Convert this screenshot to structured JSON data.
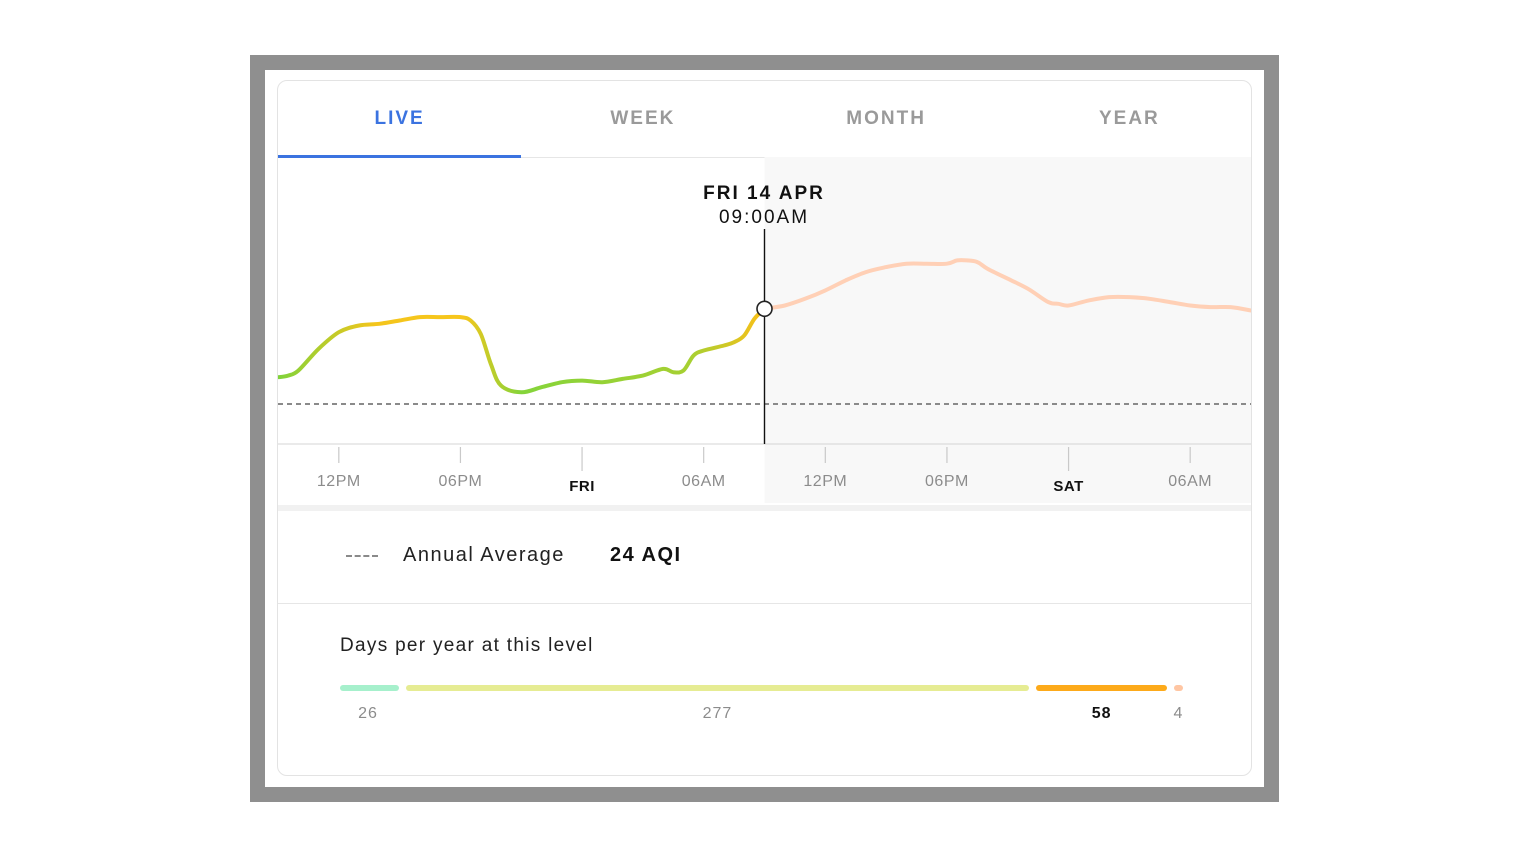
{
  "tabs": [
    {
      "label": "LIVE",
      "active": true
    },
    {
      "label": "WEEK",
      "active": false
    },
    {
      "label": "MONTH",
      "active": false
    },
    {
      "label": "YEAR",
      "active": false
    }
  ],
  "cursor": {
    "date": "FRI 14 APR",
    "time": "09:00AM"
  },
  "chart_data": {
    "type": "line",
    "x_tick_labels": [
      "12PM",
      "06PM",
      "FRI",
      "06AM",
      "12PM",
      "06PM",
      "SAT",
      "06AM"
    ],
    "x_tick_hours": [
      12,
      18,
      24,
      30,
      36,
      42,
      48,
      54
    ],
    "x_range_hours": [
      9,
      57
    ],
    "y_range": [
      0,
      130
    ],
    "past": {
      "x_hours": [
        9,
        9.5,
        10,
        11,
        12,
        13,
        14,
        15,
        16,
        17,
        18,
        18.5,
        19,
        19.5,
        20,
        21,
        22,
        23,
        24,
        25,
        26,
        27,
        28,
        28.5,
        29,
        29.5,
        30,
        31,
        31.5,
        32,
        32.5,
        33
      ],
      "values": [
        40,
        41,
        44,
        57,
        67,
        71,
        72,
        74,
        76,
        76,
        76,
        74,
        66,
        48,
        35,
        31,
        34,
        37,
        38,
        37,
        39,
        41,
        45,
        43,
        44,
        53,
        56,
        59,
        61,
        65,
        75,
        81
      ]
    },
    "forecast": {
      "x_hours": [
        33,
        34,
        35,
        36,
        37,
        38,
        39,
        40,
        41,
        42,
        42.5,
        43,
        43.5,
        44,
        45,
        46,
        47,
        47.5,
        48,
        49,
        50,
        51,
        52,
        53,
        54,
        55,
        56,
        57
      ],
      "values": [
        81,
        83,
        87,
        92,
        98,
        103,
        106,
        108,
        108,
        108,
        110,
        110,
        109,
        105,
        99,
        93,
        85,
        84,
        83,
        86,
        88,
        88,
        87,
        85,
        83,
        82,
        82,
        80
      ]
    },
    "annual_average": 24
  },
  "annual_average": {
    "label": "Annual Average",
    "value": "24 AQI"
  },
  "days_per_year": {
    "title": "Days per year at this level",
    "segments": [
      {
        "days": "26",
        "color": "#a6f0cc"
      },
      {
        "days": "277",
        "color": "#e6ec93"
      },
      {
        "days": "58",
        "color": "#fdaa1a",
        "current": true
      },
      {
        "days": "4",
        "color": "#ffc6a3"
      }
    ]
  }
}
